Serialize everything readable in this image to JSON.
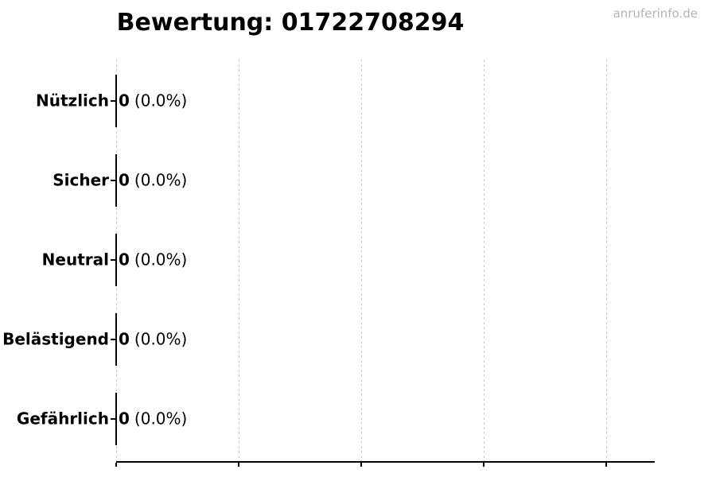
{
  "title": "Bewertung: 01722708294",
  "watermark": "anruferinfo.de",
  "colors": {
    "background": "#ffffff",
    "title_text": "#000000",
    "label_text": "#000000",
    "watermark_text": "#b4b4b4",
    "gridline": "#cbcbcb",
    "axis": "#000000",
    "bar_edge": "#000000"
  },
  "chart_data": {
    "type": "bar",
    "orientation": "horizontal",
    "title": "Bewertung: 01722708294",
    "categories": [
      "Nützlich",
      "Sicher",
      "Neutral",
      "Belästigend",
      "Gefährlich"
    ],
    "values": [
      0,
      0,
      0,
      0,
      0
    ],
    "percentages": [
      0.0,
      0.0,
      0.0,
      0.0,
      0.0
    ],
    "annotations": [
      {
        "count": "0",
        "pct": "(0.0%)"
      },
      {
        "count": "0",
        "pct": "(0.0%)"
      },
      {
        "count": "0",
        "pct": "(0.0%)"
      },
      {
        "count": "0",
        "pct": "(0.0%)"
      },
      {
        "count": "0",
        "pct": "(0.0%)"
      }
    ],
    "xlabel": "",
    "ylabel": "",
    "xlim": [
      0,
      1.1
    ],
    "grid": "vertical-dashed",
    "gridline_count": 5,
    "xtick_labels_visible": false,
    "legend": "none"
  }
}
